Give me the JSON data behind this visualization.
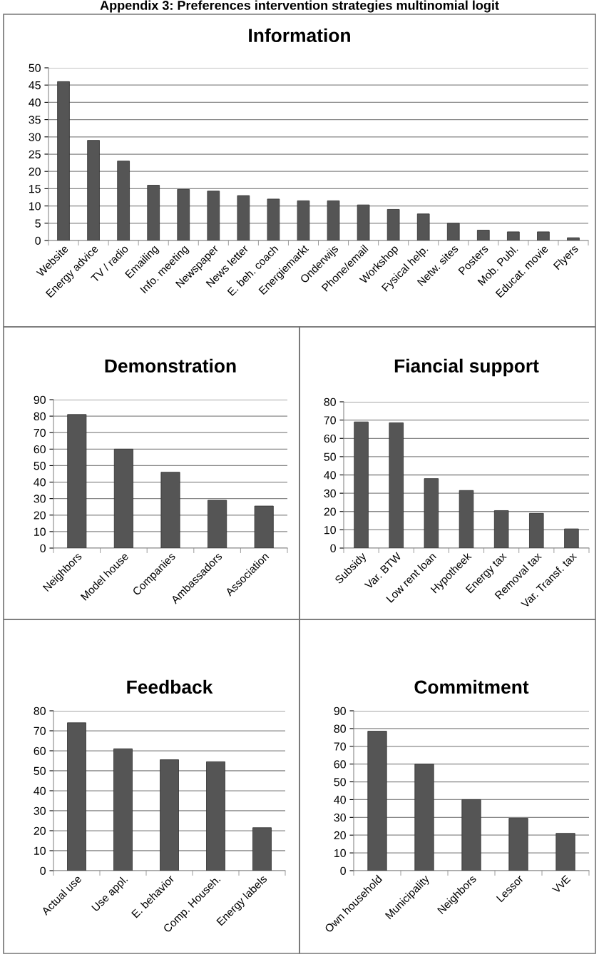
{
  "chart_data": [
    {
      "type": "bar",
      "title": "Information",
      "annotations": [
        "Appendix 3: Preferences intervention strategies multinomial logit"
      ],
      "categories": [
        "Website",
        "Energy advice",
        "TV / radio",
        "Emailing",
        "Info. meeting",
        "Newspaper",
        "News letter",
        "E. beh. coach",
        "Energiemarkt",
        "Onderwijs",
        "Phone/email",
        "Workshop",
        "Fysical help.",
        "Netw. sites",
        "Posters",
        "Mob. Publ.",
        "Educat. movie",
        "Flyers"
      ],
      "values": [
        46,
        29,
        23,
        16,
        14.8,
        14.3,
        13,
        12,
        11.5,
        11.5,
        10.3,
        9,
        7.7,
        5,
        3,
        2.5,
        2.5,
        0.8
      ],
      "color": "#555555",
      "ylim": [
        0,
        50
      ],
      "yticks": [
        0,
        5,
        10,
        15,
        20,
        25,
        30,
        35,
        40,
        45,
        50
      ],
      "grid": "y",
      "legend": false
    },
    {
      "type": "bar",
      "title": "Demonstration",
      "categories": [
        "Neighbors",
        "Model house",
        "Companies",
        "Ambassadors",
        "Association"
      ],
      "values": [
        81,
        60,
        46,
        29,
        25.5
      ],
      "color": "#555555",
      "ylim": [
        0,
        90
      ],
      "yticks": [
        0,
        10,
        20,
        30,
        40,
        50,
        60,
        70,
        80,
        90
      ],
      "grid": "y",
      "legend": false
    },
    {
      "type": "bar",
      "title": "Fiancial support",
      "categories": [
        "Subsidy",
        "Var. BTW",
        "Low rent loan",
        "Hypotheek",
        "Energy tax",
        "Removal tax",
        "Var. Transf. tax"
      ],
      "values": [
        69,
        68.5,
        38,
        31.5,
        20.5,
        19,
        10.5
      ],
      "color": "#555555",
      "ylim": [
        0,
        80
      ],
      "yticks": [
        0,
        10,
        20,
        30,
        40,
        50,
        60,
        70,
        80
      ],
      "grid": "y",
      "legend": false
    },
    {
      "type": "bar",
      "title": "Feedback",
      "categories": [
        "Actual use",
        "Use appl.",
        "E. behavior",
        "Comp. Househ.",
        "Energy labels"
      ],
      "values": [
        74,
        61,
        55.5,
        54.5,
        21.5
      ],
      "color": "#555555",
      "ylim": [
        0,
        80
      ],
      "yticks": [
        0,
        10,
        20,
        30,
        40,
        50,
        60,
        70,
        80
      ],
      "grid": "y",
      "legend": false
    },
    {
      "type": "bar",
      "title": "Commitment",
      "categories": [
        "Own household",
        "Municipality",
        "Neighbors",
        "Lessor",
        "VvE"
      ],
      "values": [
        78.5,
        60,
        40,
        29.5,
        21
      ],
      "color": "#555555",
      "ylim": [
        0,
        90
      ],
      "yticks": [
        0,
        10,
        20,
        30,
        40,
        50,
        60,
        70,
        80,
        90
      ],
      "grid": "y",
      "legend": false
    }
  ]
}
